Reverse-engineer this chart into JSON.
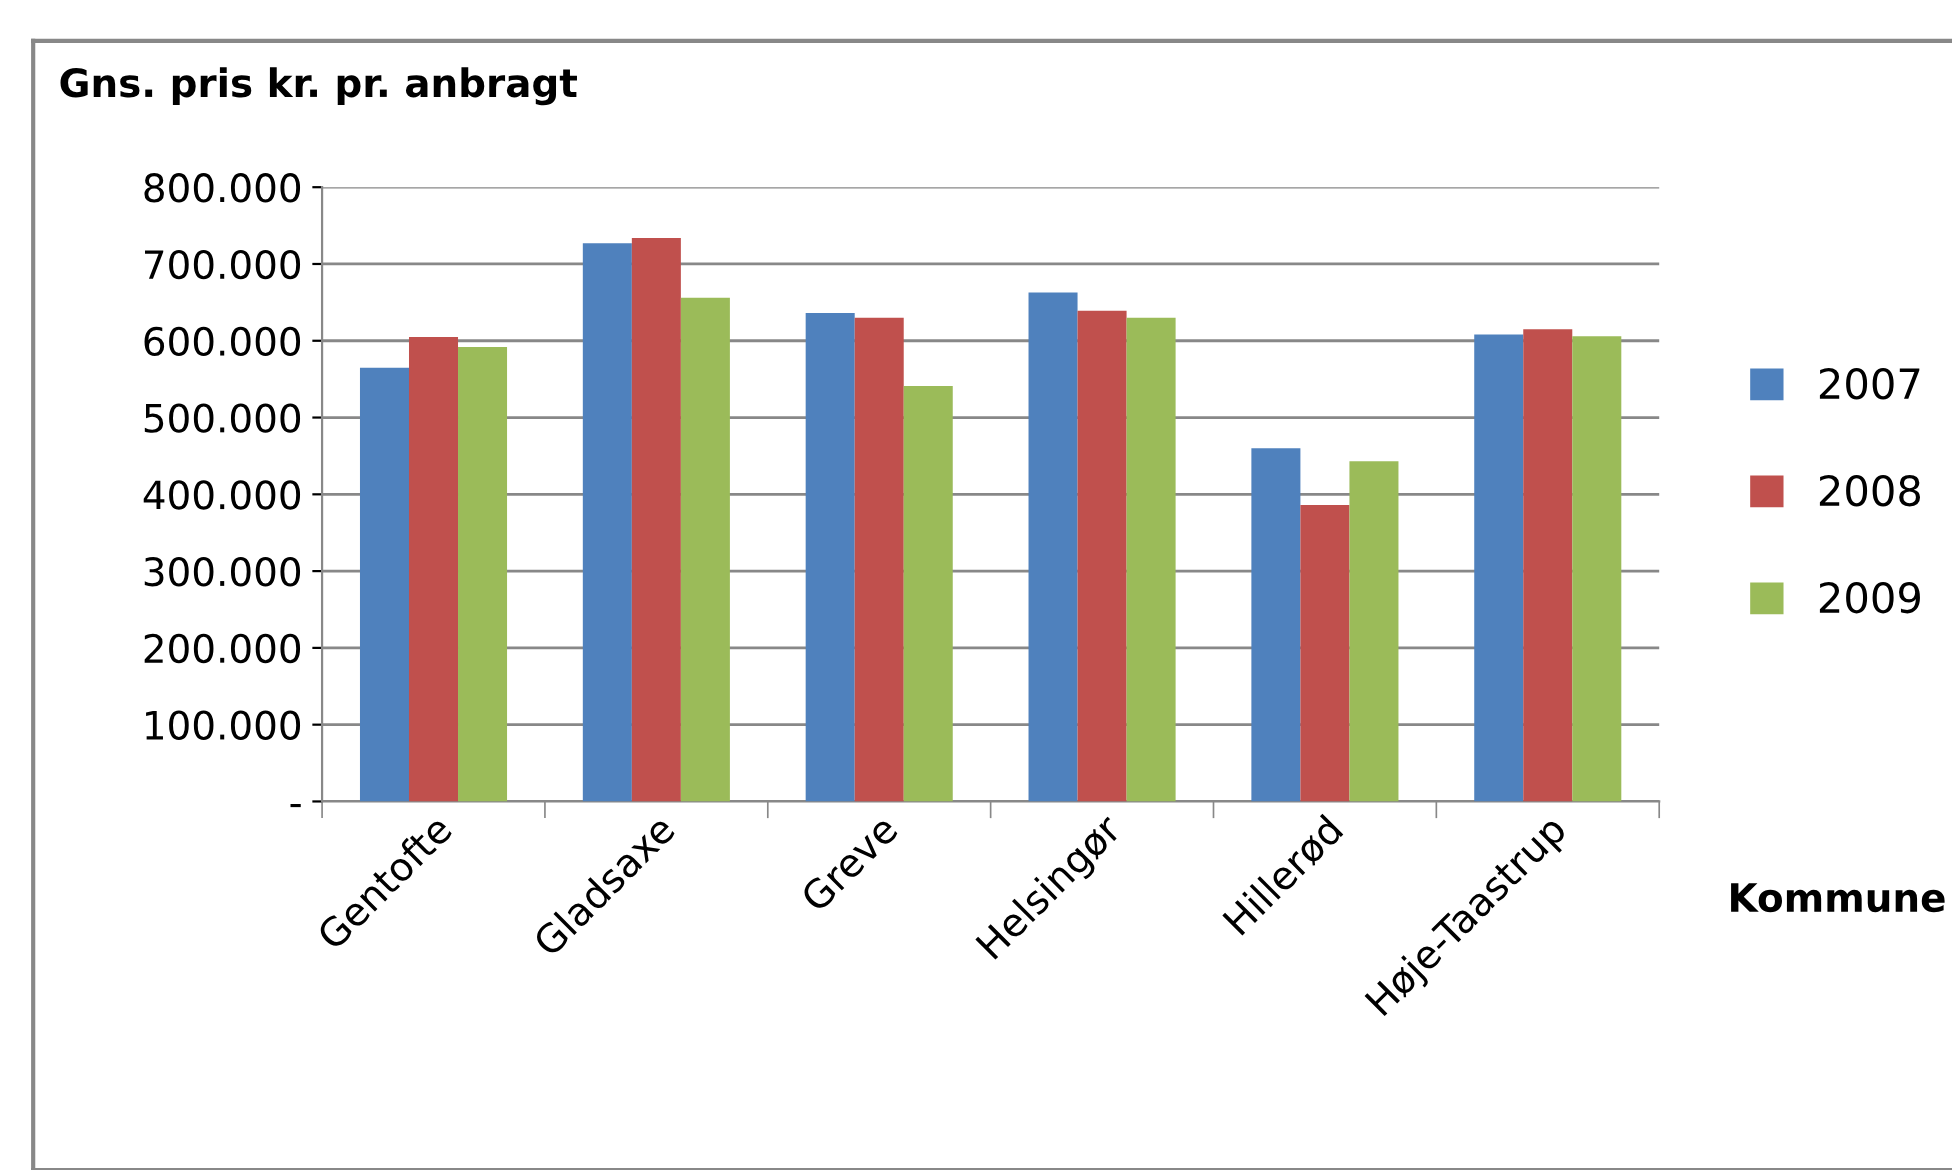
{
  "chart_data": {
    "type": "bar",
    "ylabel": "Gns. pris kr. pr. anbragt",
    "xlabel": "Kommune",
    "categories": [
      "Gentofte",
      "Gladsaxe",
      "Greve",
      "Helsingør",
      "Hillerød",
      "Høje-Taastrup"
    ],
    "series": [
      {
        "name": "2007",
        "color": "#4f81bd",
        "values": [
          565000,
          727000,
          636000,
          663000,
          460000,
          608000
        ]
      },
      {
        "name": "2008",
        "color": "#c0504d",
        "values": [
          605000,
          734000,
          630000,
          639000,
          386000,
          615000
        ]
      },
      {
        "name": "2009",
        "color": "#9bbb59",
        "values": [
          592000,
          656000,
          541000,
          630000,
          443000,
          606000
        ]
      }
    ],
    "ylim": [
      0,
      800000
    ],
    "yticks": [
      {
        "value": 0,
        "label": "-"
      },
      {
        "value": 100000,
        "label": "100.000"
      },
      {
        "value": 200000,
        "label": "200.000"
      },
      {
        "value": 300000,
        "label": "300.000"
      },
      {
        "value": 400000,
        "label": "400.000"
      },
      {
        "value": 500000,
        "label": "500.000"
      },
      {
        "value": 600000,
        "label": "600.000"
      },
      {
        "value": 700000,
        "label": "700.000"
      },
      {
        "value": 800000,
        "label": "800.000"
      }
    ],
    "grid": "y",
    "legend": "right"
  }
}
